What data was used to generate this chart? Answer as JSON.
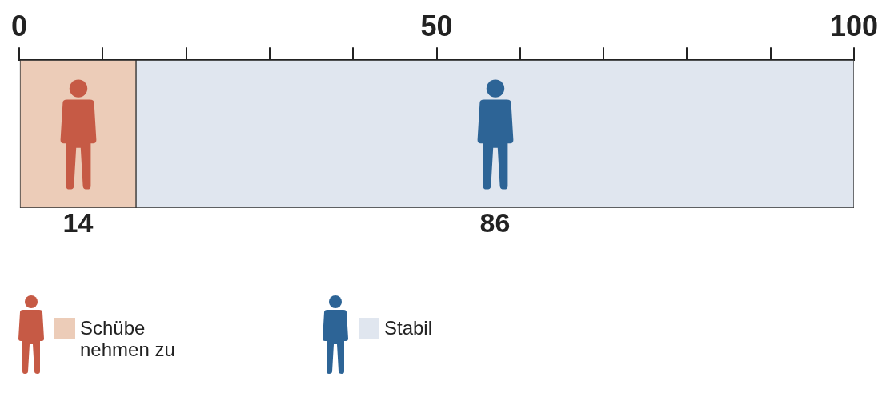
{
  "chart_data": {
    "type": "bar",
    "orientation": "horizontal",
    "stacked": true,
    "categories": [
      null
    ],
    "series": [
      {
        "name": "Schübe nehmen zu",
        "color": "#ecccb8",
        "values": [
          14
        ]
      },
      {
        "name": "Stabil",
        "color": "#e0e6ef",
        "values": [
          86
        ]
      }
    ],
    "xlim": [
      0,
      100
    ],
    "xticks": [
      0,
      {
        "value": 10,
        "label": null
      },
      {
        "value": 20,
        "label": null
      },
      {
        "value": 30,
        "label": null
      },
      {
        "value": 40,
        "label": null
      },
      50,
      {
        "value": 60,
        "label": null
      },
      {
        "value": 70,
        "label": null
      },
      {
        "value": 80,
        "label": null
      },
      {
        "value": 90,
        "label": null
      },
      100
    ],
    "grid": false,
    "data_labels": true,
    "legend": "bottom left"
  }
}
